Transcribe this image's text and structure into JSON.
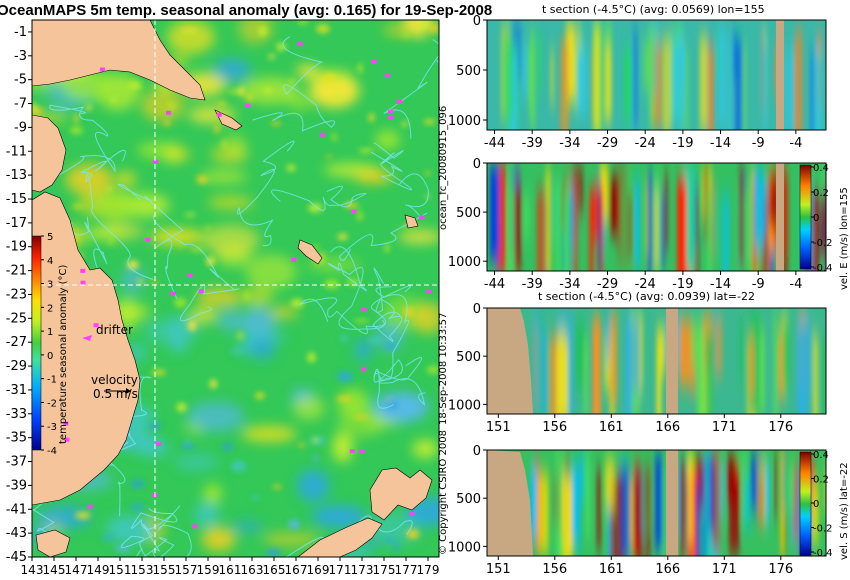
{
  "chart_data": [
    {
      "type": "heatmap",
      "title": "OceanMAPS 5m temp. seasonal anomaly (avg: 0.165) for 19-Sep-2008",
      "x_ticks": [
        "143",
        "145",
        "147",
        "149",
        "151",
        "153",
        "155",
        "157",
        "159",
        "161",
        "163",
        "165",
        "167",
        "169",
        "171",
        "173",
        "175",
        "177",
        "179"
      ],
      "y_ticks": [
        "-1",
        "-3",
        "-5",
        "-7",
        "-9",
        "-11",
        "-13",
        "-15",
        "-17",
        "-19",
        "-21",
        "-23",
        "-25",
        "-27",
        "-29",
        "-31",
        "-33",
        "-35",
        "-37",
        "-39",
        "-41",
        "-43",
        "-45"
      ],
      "xlim": [
        143,
        180
      ],
      "ylim": [
        -45,
        0
      ],
      "colorbar": {
        "label": "temperature seasonal anomaly (°C)",
        "ticks": [
          "5",
          "4",
          "3",
          "2",
          "1",
          "0",
          "-1",
          "-2",
          "-3",
          "-4"
        ],
        "range": [
          -4,
          5
        ]
      },
      "crosshair": {
        "lon": 155,
        "lat": -22
      },
      "annotations": {
        "drifter": "drifter",
        "velocity": "velocity",
        "velocity_value": "0.5 m/s"
      }
    },
    {
      "type": "heatmap",
      "title": "t section (-4.5°C) (avg: 0.0569) lon=155",
      "x_ticks": [
        "-44",
        "-39",
        "-34",
        "-29",
        "-24",
        "-19",
        "-14",
        "-9",
        "-4"
      ],
      "y_ticks": [
        "0",
        "500",
        "1000"
      ],
      "xlim": [
        -45,
        0
      ],
      "ylim": [
        1100,
        0
      ]
    },
    {
      "type": "heatmap",
      "title": "",
      "x_ticks": [
        "-44",
        "-39",
        "-34",
        "-29",
        "-24",
        "-19",
        "-14",
        "-9",
        "-4"
      ],
      "y_ticks": [
        "0",
        "500",
        "1000"
      ],
      "colorbar": {
        "label": "vel. E (m/s) lon=155",
        "ticks": [
          "0.4",
          "0.2",
          "0",
          "-0.2",
          "-0.4"
        ],
        "range": [
          -0.4,
          0.4
        ]
      }
    },
    {
      "type": "heatmap",
      "title": "t section (-4.5°C) (avg: 0.0939) lat=-22",
      "x_ticks": [
        "151",
        "156",
        "161",
        "166",
        "171",
        "176"
      ],
      "y_ticks": [
        "0",
        "500",
        "1000"
      ],
      "xlim": [
        150,
        180
      ],
      "ylim": [
        1100,
        0
      ]
    },
    {
      "type": "heatmap",
      "title": "",
      "x_ticks": [
        "151",
        "156",
        "161",
        "166",
        "171",
        "176"
      ],
      "y_ticks": [
        "0",
        "500",
        "1000"
      ],
      "colorbar": {
        "label": "vel. S (m/s) lat=-22",
        "ticks": [
          "0.4",
          "0.2",
          "0",
          "-0.2",
          "-0.4"
        ],
        "range": [
          -0.4,
          0.4
        ]
      }
    }
  ],
  "side_labels": {
    "run": "ocean_fc_20080915_096",
    "made": "18-Sep-2008 10:33:57",
    "copyright": "© Copyright CSIRO 2008"
  },
  "colors": {
    "land": "#f6c49a",
    "section_land": "#c8a882",
    "contour": "#7fe8ff",
    "drifter": "#ff40ff",
    "ocean_base": "#33c858",
    "warm": "#e8e020",
    "cool": "#2ea8e0"
  }
}
